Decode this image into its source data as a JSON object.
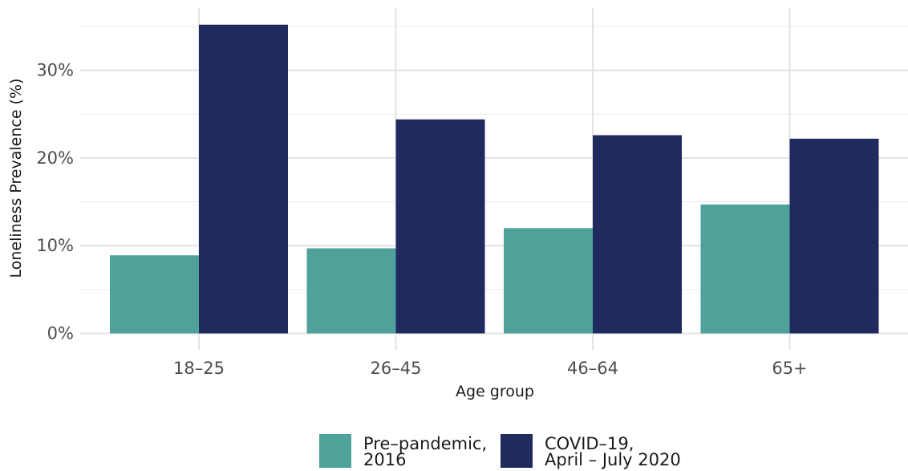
{
  "chart_data": {
    "type": "bar",
    "title": "",
    "xlabel": "Age group",
    "ylabel": "Loneliness Prevalence (%)",
    "categories": [
      "18–25",
      "26–45",
      "46–64",
      "65+"
    ],
    "series": [
      {
        "name": "Pre–pandemic,\n2016",
        "label_lines": [
          "Pre–pandemic,",
          "2016"
        ],
        "color": "#4ea29a",
        "values": [
          8.9,
          9.7,
          12.0,
          14.7
        ]
      },
      {
        "name": "COVID–19,\nApril – July 2020",
        "label_lines": [
          "COVID–19,",
          "April – July 2020"
        ],
        "color": "#212a5e",
        "values": [
          35.2,
          24.4,
          22.6,
          22.2
        ]
      }
    ],
    "ylim": [
      0,
      37
    ],
    "y_ticks": [
      0,
      10,
      20,
      30
    ],
    "y_tick_labels": [
      "0%",
      "10%",
      "20%",
      "30%"
    ],
    "grid": true,
    "legend_position": "bottom"
  }
}
